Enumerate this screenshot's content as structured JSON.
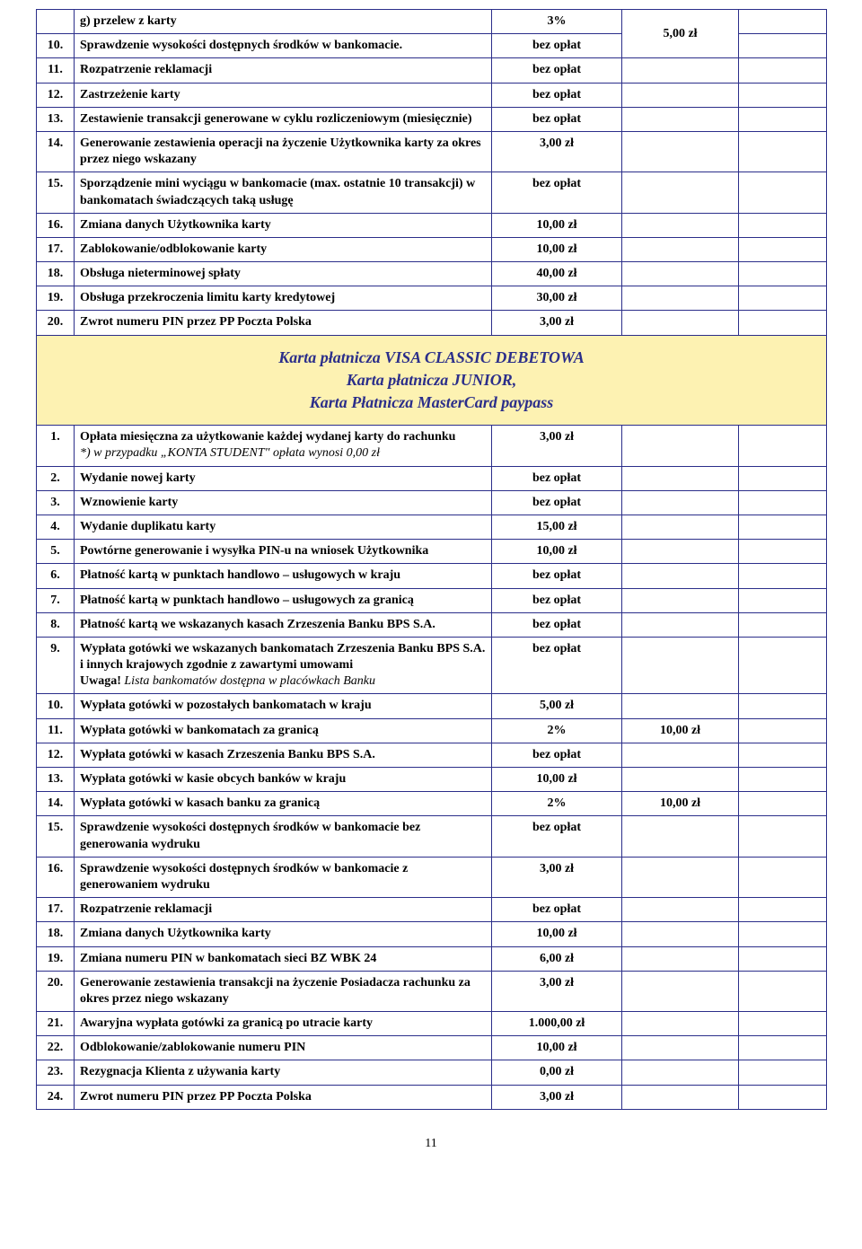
{
  "columns": {
    "num_width": 42,
    "desc_width": 465,
    "v1_width": 145,
    "v2_width": 130,
    "v3_width": 98
  },
  "colors": {
    "border": "#2b2e8a",
    "section_bg": "#fdf2b2",
    "section_text": "#2b2e8a"
  },
  "section1": [
    {
      "num": "",
      "desc": "g)   przelew z karty",
      "v1": "3%",
      "v2_span_start": true,
      "v2": "5,00 zł",
      "v3": ""
    },
    {
      "num": "10.",
      "desc": "Sprawdzenie wysokości dostępnych środków w bankomacie.",
      "v1": "bez opłat",
      "v2_span_cont": true,
      "v3": ""
    },
    {
      "num": "11.",
      "desc": "Rozpatrzenie reklamacji",
      "v1": "bez opłat",
      "v2": "",
      "v3": ""
    },
    {
      "num": "12.",
      "desc": "Zastrzeżenie karty",
      "v1": "bez opłat",
      "v2": "",
      "v3": ""
    },
    {
      "num": "13.",
      "desc": "Zestawienie transakcji generowane w cyklu rozliczeniowym (miesięcznie)",
      "v1": "bez opłat",
      "v2": "",
      "v3": ""
    },
    {
      "num": "14.",
      "desc": "Generowanie zestawienia operacji na życzenie Użytkownika karty za okres przez niego wskazany",
      "v1": "3,00 zł",
      "v2": "",
      "v3": ""
    },
    {
      "num": "15.",
      "desc": "Sporządzenie mini wyciągu w bankomacie (max. ostatnie 10 transakcji) w bankomatach świadczących taką usługę",
      "v1": "bez opłat",
      "v2": "",
      "v3": ""
    },
    {
      "num": "16.",
      "desc": "Zmiana danych Użytkownika karty",
      "v1": "10,00 zł",
      "v2": "",
      "v3": ""
    },
    {
      "num": "17.",
      "desc": "Zablokowanie/odblokowanie karty",
      "v1": "10,00 zł",
      "v2": "",
      "v3": ""
    },
    {
      "num": "18.",
      "desc": "Obsługa nieterminowej spłaty",
      "v1": "40,00 zł",
      "v2": "",
      "v3": ""
    },
    {
      "num": "19.",
      "desc": "Obsługa przekroczenia limitu karty kredytowej",
      "v1": "30,00 zł",
      "v2": "",
      "v3": ""
    },
    {
      "num": "20.",
      "desc": "Zwrot numeru PIN przez PP Poczta Polska",
      "v1": "3,00 zł",
      "v2": "",
      "v3": ""
    }
  ],
  "section_header": {
    "line1": "Karta płatnicza VISA CLASSIC  DEBETOWA",
    "line2": "Karta płatnicza JUNIOR,",
    "line3": "Karta Płatnicza MasterCard paypass"
  },
  "section2": [
    {
      "num": "1.",
      "desc": "Opłata miesięczna za użytkowanie każdej wydanej karty do rachunku",
      "desc_note": "*) w przypadku „KONTA STUDENT\" opłata  wynosi 0,00 zł",
      "v1": "3,00 zł",
      "v2": "",
      "v3": ""
    },
    {
      "num": "2.",
      "desc": "Wydanie nowej karty",
      "v1": "bez opłat",
      "v2": "",
      "v3": ""
    },
    {
      "num": "3.",
      "desc": "Wznowienie karty",
      "v1": "bez opłat",
      "v2": "",
      "v3": ""
    },
    {
      "num": "4.",
      "desc": "Wydanie duplikatu karty",
      "v1": "15,00 zł",
      "v2": "",
      "v3": ""
    },
    {
      "num": "5.",
      "desc": "Powtórne generowanie i wysyłka PIN-u na wniosek Użytkownika",
      "v1": "10,00 zł",
      "v2": "",
      "v3": ""
    },
    {
      "num": "6.",
      "desc": "Płatność kartą w punktach handlowo – usługowych w kraju",
      "v1": "bez opłat",
      "v2": "",
      "v3": ""
    },
    {
      "num": "7.",
      "desc": "Płatność kartą w punktach handlowo – usługowych za granicą",
      "v1": "bez opłat",
      "v2": "",
      "v3": ""
    },
    {
      "num": "8.",
      "desc": "Płatność kartą we wskazanych kasach Zrzeszenia Banku BPS S.A.",
      "v1": "bez opłat",
      "v2": "",
      "v3": ""
    },
    {
      "num": "9.",
      "desc": "Wypłata gotówki we wskazanych bankomatach Zrzeszenia Banku BPS S.A. i innych krajowych zgodnie z zawartymi umowami",
      "desc_note2": "Uwaga! ",
      "desc_note2b": "Lista bankomatów dostępna w placówkach Banku",
      "v1": "bez opłat",
      "v2": "",
      "v3": ""
    },
    {
      "num": "10.",
      "desc": "Wypłata gotówki w pozostałych bankomatach w kraju",
      "v1": "5,00 zł",
      "v2": "",
      "v3": ""
    },
    {
      "num": "11.",
      "desc": "Wypłata gotówki w bankomatach za granicą",
      "v1": "2%",
      "v2": "10,00 zł",
      "v3": ""
    },
    {
      "num": "12.",
      "desc": "Wypłata gotówki w kasach Zrzeszenia Banku BPS S.A.",
      "v1": "bez opłat",
      "v2": "",
      "v3": ""
    },
    {
      "num": "13.",
      "desc": "Wypłata gotówki w kasie obcych banków w kraju",
      "v1": "10,00 zł",
      "v2": "",
      "v3": ""
    },
    {
      "num": "14.",
      "desc": "Wypłata gotówki w kasach banku za granicą",
      "v1": "2%",
      "v2": "10,00 zł",
      "v3": ""
    },
    {
      "num": "15.",
      "desc": "Sprawdzenie wysokości dostępnych środków w bankomacie bez generowania wydruku",
      "v1": "bez opłat",
      "v2": "",
      "v3": ""
    },
    {
      "num": "16.",
      "desc": "Sprawdzenie wysokości dostępnych środków w bankomacie z generowaniem wydruku",
      "v1": "3,00 zł",
      "v2": "",
      "v3": ""
    },
    {
      "num": "17.",
      "desc": "Rozpatrzenie reklamacji",
      "v1": "bez opłat",
      "v2": "",
      "v3": ""
    },
    {
      "num": "18.",
      "desc": "Zmiana danych Użytkownika karty",
      "v1": "10,00 zł",
      "v2": "",
      "v3": ""
    },
    {
      "num": "19.",
      "desc": "Zmiana numeru PIN w bankomatach sieci BZ WBK 24",
      "v1": "6,00 zł",
      "v2": "",
      "v3": ""
    },
    {
      "num": "20.",
      "desc": "Generowanie zestawienia transakcji na życzenie Posiadacza rachunku za okres przez niego wskazany",
      "v1": "3,00 zł",
      "v2": "",
      "v3": ""
    },
    {
      "num": "21.",
      "desc": "Awaryjna wypłata gotówki za granicą po utracie karty",
      "v1": "1.000,00 zł",
      "v2": "",
      "v3": ""
    },
    {
      "num": "22.",
      "desc": "Odblokowanie/zablokowanie numeru PIN",
      "v1": "10,00 zł",
      "v2": "",
      "v3": ""
    },
    {
      "num": "23.",
      "desc": "Rezygnacja Klienta z używania karty",
      "v1": "0,00 zł",
      "v2": "",
      "v3": ""
    },
    {
      "num": "24.",
      "desc": "Zwrot numeru PIN przez PP Poczta Polska",
      "v1": "3,00 zł",
      "v2": "",
      "v3": ""
    }
  ],
  "page_number": "11"
}
